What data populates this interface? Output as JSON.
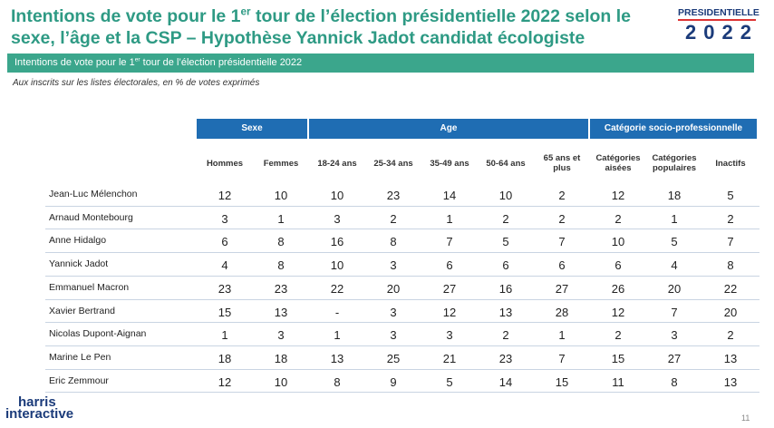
{
  "header": {
    "title_start": "Intentions de vote pour le 1",
    "title_sup": "er",
    "title_end": "tour de l’élection présidentielle 2022 selon le sexe, l’âge et la CSP – Hypothèse Yannick Jadot candidat écologiste",
    "logo_top": "PRESIDENTIELLE",
    "logo_bottom": "2022"
  },
  "banner": {
    "start": "Intentions de vote pour le 1",
    "sup": "er",
    "end": "tour de l’élection présidentielle 2022"
  },
  "subtitle": "Aux inscrits sur les listes électorales, en % de votes exprimés",
  "table": {
    "groups": [
      {
        "label": "Sexe",
        "span": 2
      },
      {
        "label": "Age",
        "span": 5
      },
      {
        "label": "Catégorie socio-professionnelle",
        "span": 3
      }
    ],
    "columns": [
      "Hommes",
      "Femmes",
      "18-24 ans",
      "25-34 ans",
      "35-49 ans",
      "50-64 ans",
      "65 ans et plus",
      "Catégories aisées",
      "Catégories populaires",
      "Inactifs"
    ],
    "rows": [
      {
        "label": "Jean-Luc Mélenchon",
        "values": [
          12,
          10,
          10,
          23,
          14,
          10,
          2,
          12,
          18,
          5
        ]
      },
      {
        "label": "Arnaud Montebourg",
        "values": [
          3,
          1,
          3,
          2,
          1,
          2,
          2,
          2,
          1,
          2
        ]
      },
      {
        "label": "Anne Hidalgo",
        "values": [
          6,
          8,
          16,
          8,
          7,
          5,
          7,
          10,
          5,
          7
        ]
      },
      {
        "label": "Yannick Jadot",
        "values": [
          4,
          8,
          10,
          3,
          6,
          6,
          6,
          6,
          4,
          8
        ]
      },
      {
        "label": "Emmanuel Macron",
        "values": [
          23,
          23,
          22,
          20,
          27,
          16,
          27,
          26,
          20,
          22
        ]
      },
      {
        "label": "Xavier Bertrand",
        "values": [
          15,
          13,
          "-",
          3,
          12,
          13,
          28,
          12,
          7,
          20
        ]
      },
      {
        "label": "Nicolas Dupont-Aignan",
        "values": [
          1,
          3,
          1,
          3,
          3,
          2,
          1,
          2,
          3,
          2
        ]
      },
      {
        "label": "Marine Le Pen",
        "values": [
          18,
          18,
          13,
          25,
          21,
          23,
          7,
          15,
          27,
          13
        ]
      },
      {
        "label": "Eric Zemmour",
        "values": [
          12,
          10,
          8,
          9,
          5,
          14,
          15,
          11,
          8,
          13
        ]
      }
    ]
  },
  "footer": {
    "brand_top": "harris",
    "brand_bottom": "interactive",
    "page": "11"
  }
}
